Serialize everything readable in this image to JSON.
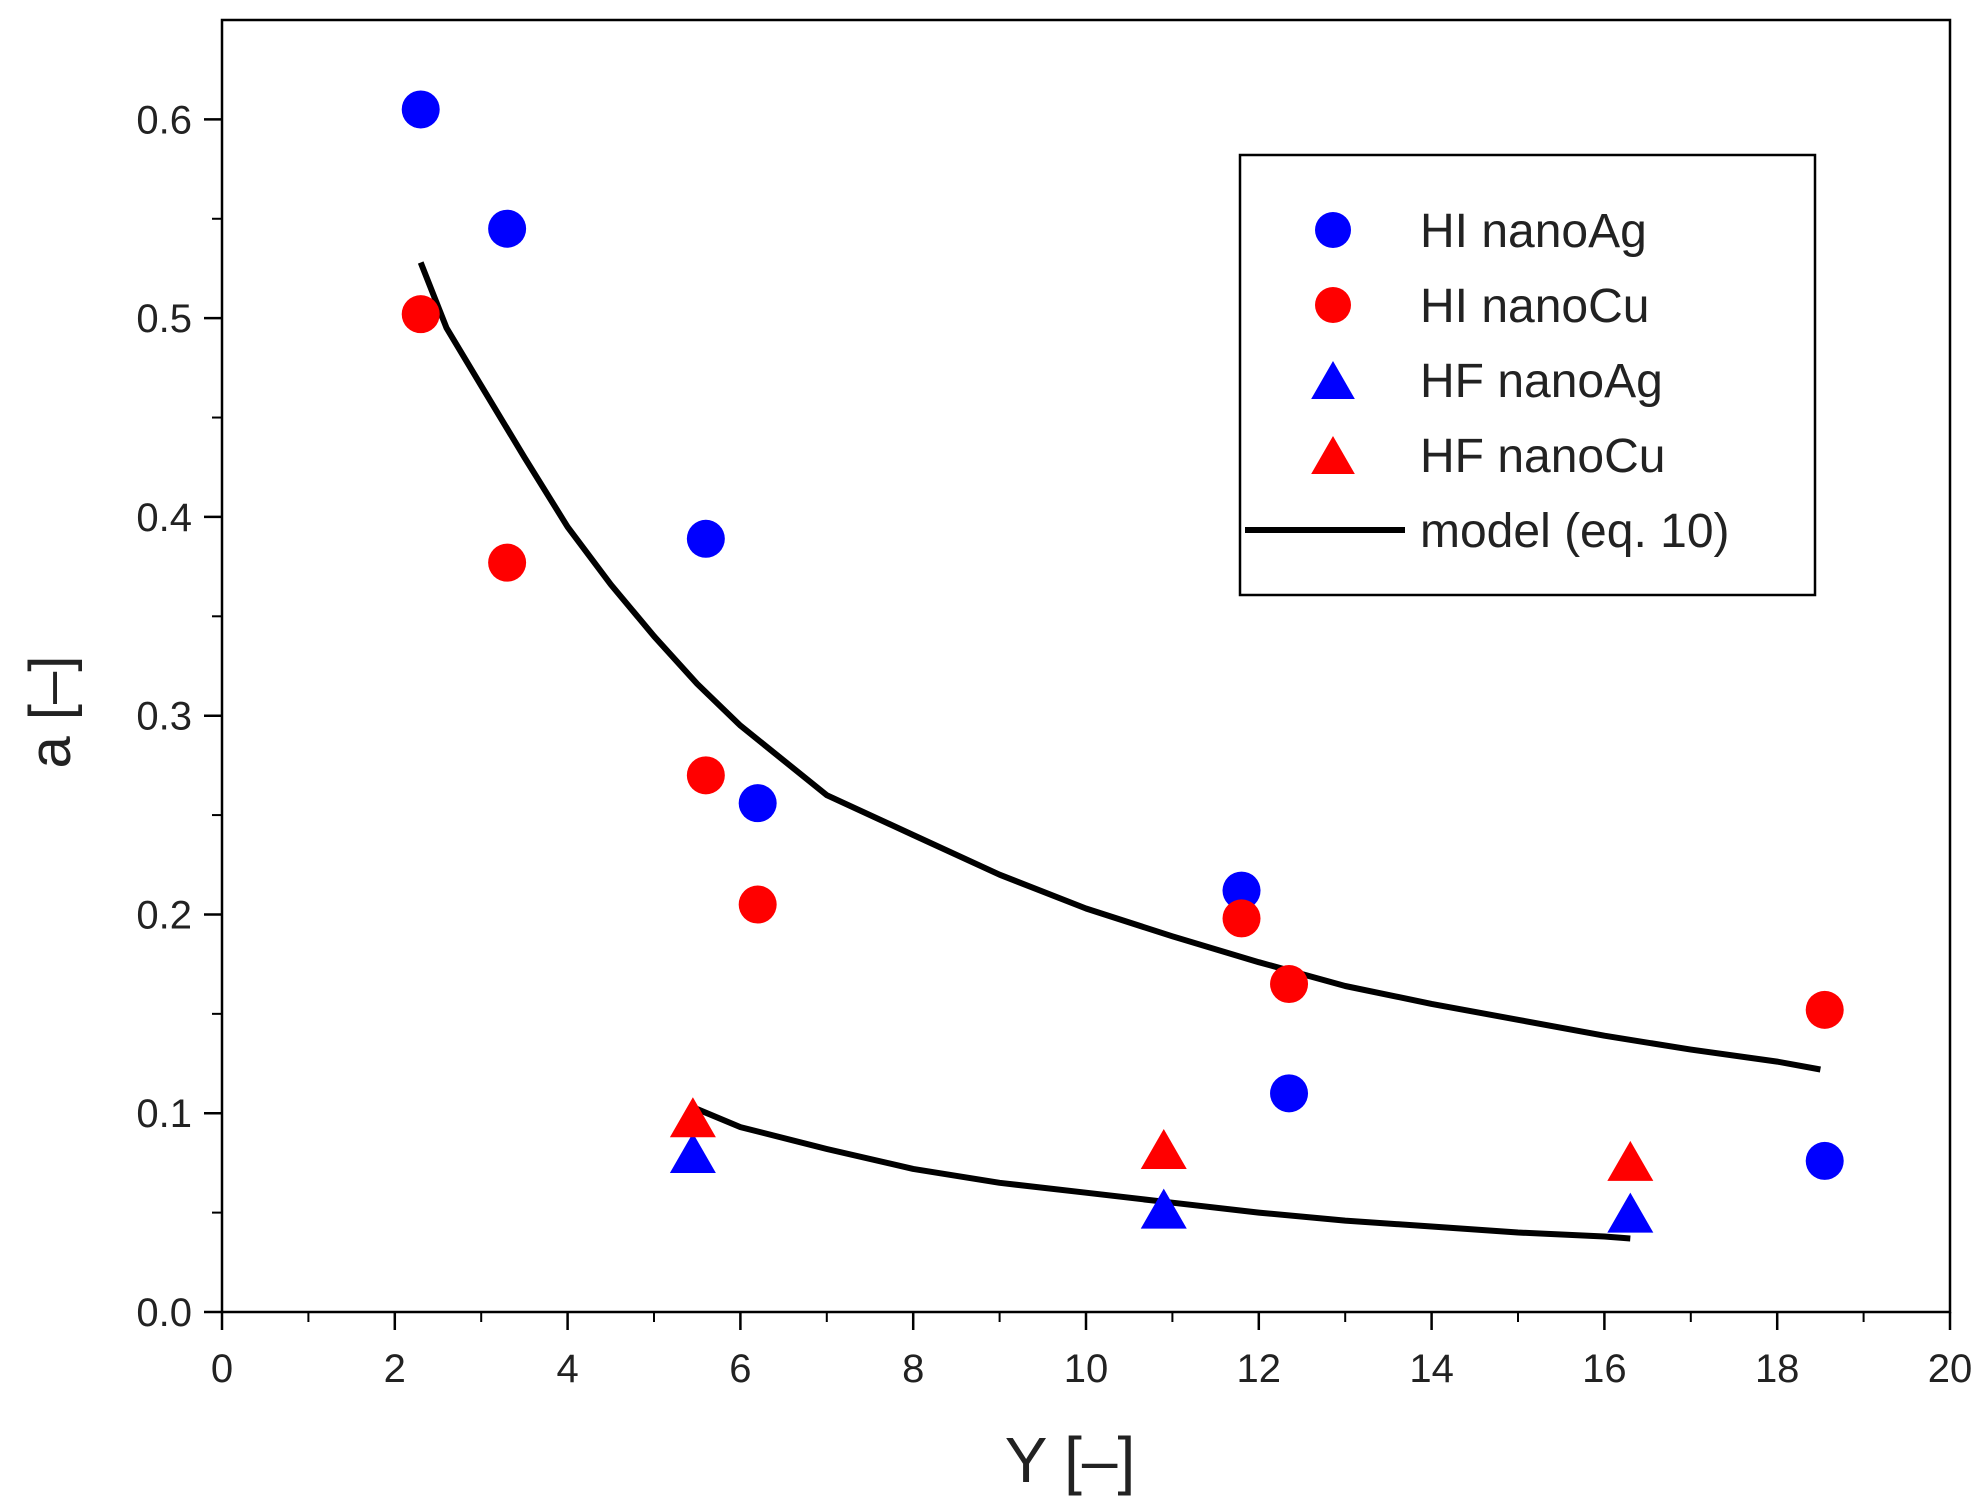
{
  "chart_data": {
    "type": "scatter",
    "xlabel": "Y [–]",
    "ylabel": "a [–]",
    "xlim": [
      0,
      20
    ],
    "ylim": [
      0,
      0.65
    ],
    "xticks": [
      "0",
      "2",
      "4",
      "6",
      "8",
      "10",
      "12",
      "14",
      "16",
      "18",
      "20"
    ],
    "yticks": [
      "0.0",
      "0.1",
      "0.2",
      "0.3",
      "0.4",
      "0.5",
      "0.6"
    ],
    "grid": false,
    "legend_position": "top-right",
    "series": [
      {
        "name": "HI nanoAg",
        "marker": "circle",
        "color": "#0000ff",
        "x": [
          2.3,
          3.3,
          5.6,
          6.2,
          11.8,
          12.35,
          18.55
        ],
        "y": [
          0.605,
          0.545,
          0.389,
          0.256,
          0.212,
          0.11,
          0.076
        ]
      },
      {
        "name": "HI nanoCu",
        "marker": "circle",
        "color": "#ff0000",
        "x": [
          2.3,
          3.3,
          5.6,
          6.2,
          11.8,
          12.35,
          18.55
        ],
        "y": [
          0.502,
          0.377,
          0.27,
          0.205,
          0.198,
          0.165,
          0.152
        ]
      },
      {
        "name": "HF nanoAg",
        "marker": "triangle",
        "color": "#0000ff",
        "x": [
          5.45,
          10.9,
          16.3
        ],
        "y": [
          0.08,
          0.052,
          0.05
        ]
      },
      {
        "name": "HF nanoCu",
        "marker": "triangle",
        "color": "#ff0000",
        "x": [
          5.45,
          10.9,
          16.3
        ],
        "y": [
          0.098,
          0.082,
          0.076
        ]
      },
      {
        "name": "model (eq. 10)",
        "marker": "line",
        "color": "#000000",
        "curves": [
          {
            "x": [
              2.3,
              2.6,
              3.0,
              3.5,
              4.0,
              4.5,
              5.0,
              5.5,
              6.0,
              7.0,
              8.0,
              9.0,
              10.0,
              11.0,
              12.0,
              13.0,
              14.0,
              15.0,
              16.0,
              17.0,
              18.0,
              18.5
            ],
            "y": [
              0.528,
              0.495,
              0.466,
              0.43,
              0.395,
              0.366,
              0.34,
              0.316,
              0.295,
              0.26,
              0.24,
              0.22,
              0.203,
              0.189,
              0.176,
              0.164,
              0.155,
              0.147,
              0.139,
              0.132,
              0.126,
              0.122
            ]
          },
          {
            "x": [
              5.45,
              6.0,
              7.0,
              8.0,
              9.0,
              10.0,
              11.0,
              12.0,
              13.0,
              14.0,
              15.0,
              16.0,
              16.3
            ],
            "y": [
              0.103,
              0.093,
              0.082,
              0.072,
              0.065,
              0.06,
              0.055,
              0.05,
              0.046,
              0.043,
              0.04,
              0.038,
              0.037
            ]
          }
        ]
      }
    ]
  }
}
